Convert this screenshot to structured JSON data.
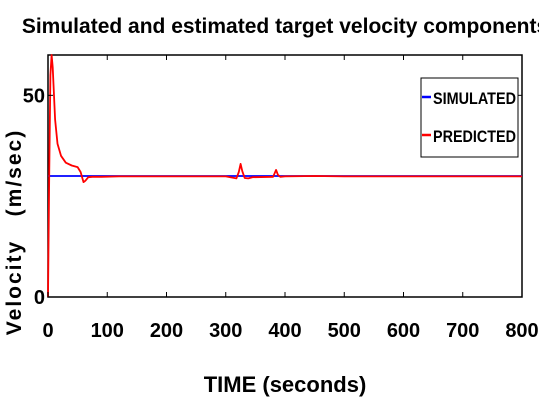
{
  "chart_data": {
    "type": "line",
    "title": "Simulated and estimated target velocity components",
    "xlabel": "TIME (seconds)",
    "ylabel": "Velocity   (m/sec)",
    "xlim": [
      0,
      800
    ],
    "ylim": [
      0,
      60
    ],
    "xticks": [
      0,
      100,
      200,
      300,
      400,
      500,
      600,
      700,
      800
    ],
    "yticks": [
      0,
      50
    ],
    "grid": false,
    "legend_position": "top-right",
    "series": [
      {
        "name": "SIMULATED",
        "color": "#0000ff",
        "x": [
          0,
          800
        ],
        "y": [
          30,
          30
        ]
      },
      {
        "name": "PREDICTED",
        "color": "#ff0000",
        "x": [
          0,
          2,
          4,
          6,
          8,
          12,
          16,
          22,
          30,
          40,
          50,
          55,
          60,
          63,
          68,
          75,
          90,
          120,
          200,
          300,
          318,
          322,
          325,
          328,
          332,
          338,
          345,
          380,
          385,
          388,
          392,
          400,
          450,
          500,
          600,
          700,
          800
        ],
        "y": [
          0,
          30,
          55,
          60,
          57,
          44,
          38,
          35,
          33.3,
          32.6,
          32.2,
          31,
          28.5,
          28.8,
          29.7,
          29.8,
          29.8,
          29.9,
          29.9,
          29.9,
          29.4,
          31,
          33,
          31.2,
          29.5,
          29.4,
          29.7,
          29.8,
          31.5,
          30.3,
          29.8,
          29.9,
          30,
          29.9,
          29.9,
          29.9,
          29.9
        ]
      }
    ]
  }
}
